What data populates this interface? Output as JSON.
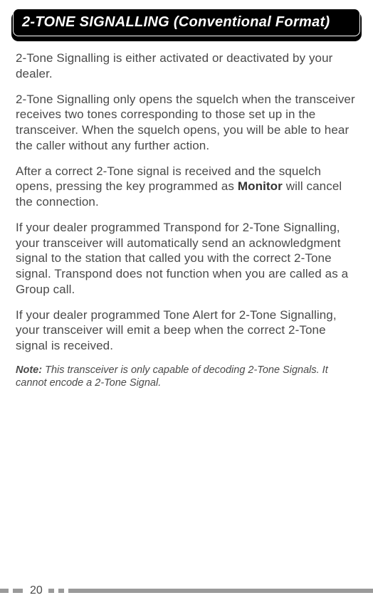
{
  "header": {
    "title": "2-TONE SIGNALLING (Conventional Format)"
  },
  "paragraphs": {
    "p1": "2-Tone Signalling is either activated or deactivated by your dealer.",
    "p2": "2-Tone Signalling only opens the squelch when the transceiver receives two tones corresponding to those set up in the transceiver.  When the squelch opens, you will be able to hear the caller without any further action.",
    "p3a": "After a correct 2-Tone signal is received and the squelch opens, pressing the key programmed as ",
    "p3_bold": "Monitor",
    "p3b": " will cancel the connection.",
    "p4": "If your dealer programmed Transpond for 2-Tone Signalling, your transceiver will automatically send an acknowledgment signal to the station that called you with the correct 2-Tone signal.  Transpond does not function when you are called as a Group call.",
    "p5": "If your dealer programmed Tone Alert for 2-Tone Signalling, your transceiver will emit a beep when the correct 2-Tone signal is received."
  },
  "note": {
    "label": "Note:",
    "text": "  This transceiver is only capable of decoding 2-Tone Signals.  It cannot encode a 2-Tone Signal."
  },
  "footer": {
    "page": "20"
  },
  "colors": {
    "header_bg": "#000000",
    "header_text": "#ffffff",
    "body_text": "#4a4a4a",
    "tick": "#9a9a9a",
    "page_bg": "#ffffff"
  },
  "typography": {
    "header_fontsize": 20,
    "body_fontsize": 17,
    "note_fontsize": 14.5,
    "page_fontsize": 16
  }
}
